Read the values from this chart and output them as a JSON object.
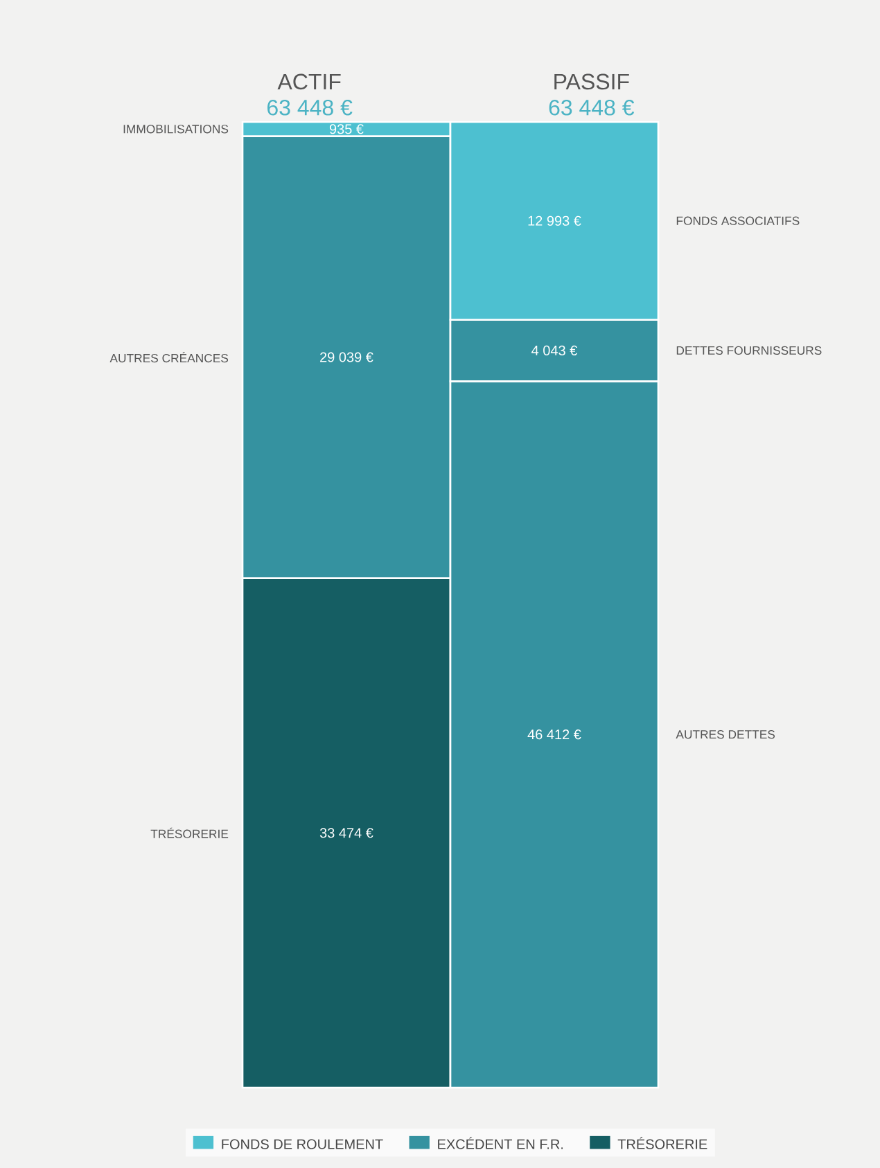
{
  "chart_data": {
    "type": "bar",
    "stacked": true,
    "categories": [
      "ACTIF",
      "PASSIF"
    ],
    "totals": [
      "63 448 €",
      "63 448 €"
    ],
    "series": [
      {
        "name": "TRÉSORERIE",
        "color": "#155e63",
        "values": [
          33474,
          null
        ],
        "value_labels": [
          "33 474 €",
          null
        ]
      },
      {
        "name": "EXCÉDENT EN F.R.",
        "color": "#3592a0",
        "values": [
          29039,
          46412
        ],
        "value_labels": [
          "29 039 €",
          "46 412 €"
        ]
      },
      {
        "color": "#3592a0",
        "values": [
          null,
          4043
        ],
        "value_labels": [
          null,
          "4 043 €"
        ]
      },
      {
        "name": "FONDS DE ROULEMENT",
        "color": "#4dc0d0",
        "values": [
          935,
          12993
        ],
        "value_labels": [
          "935 €",
          "12 993 €"
        ]
      }
    ],
    "annotations": [
      "IMMOBILISATIONS",
      "AUTRES CRÉANCES",
      "TRÉSORERIE",
      "FONDS ASSOCIATIFS",
      "DETTES FOURNISSEURS",
      "AUTRES DETTES"
    ],
    "legend": "bottom",
    "data_labels": false
  }
}
